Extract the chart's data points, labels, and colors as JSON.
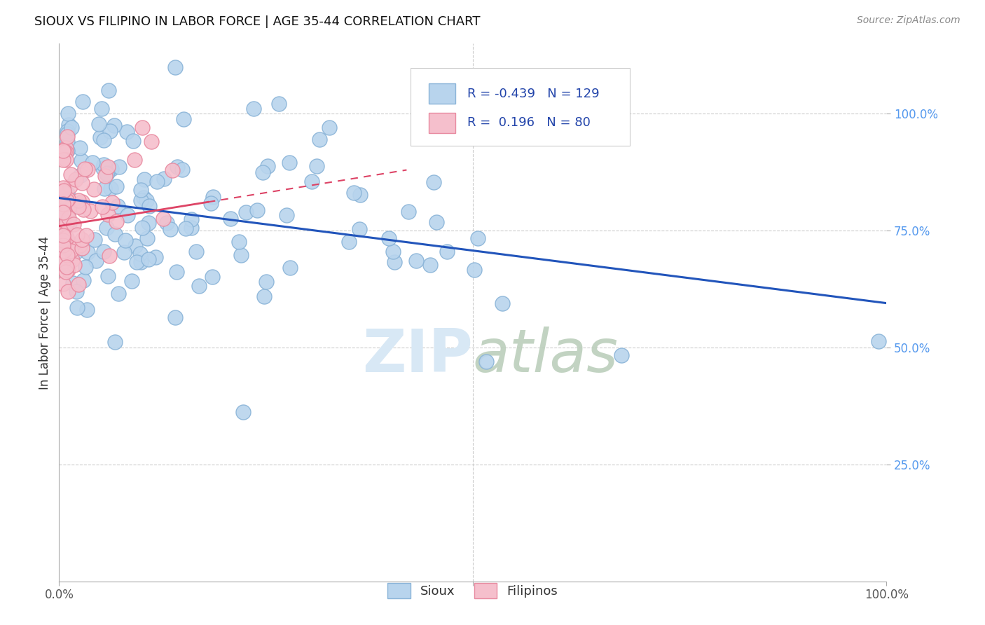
{
  "title": "SIOUX VS FILIPINO IN LABOR FORCE | AGE 35-44 CORRELATION CHART",
  "source": "Source: ZipAtlas.com",
  "ylabel": "In Labor Force | Age 35-44",
  "xmin": 0.0,
  "xmax": 1.0,
  "ymin": 0.0,
  "ymax": 1.15,
  "sioux_R": -0.439,
  "sioux_N": 129,
  "filipino_R": 0.196,
  "filipino_N": 80,
  "sioux_color": "#b8d4ed",
  "sioux_edge": "#8ab4d8",
  "filipino_color": "#f5bfcc",
  "filipino_edge": "#e88aa0",
  "trend_sioux_color": "#2255bb",
  "trend_filipino_color": "#dd4466",
  "watermark_color": "#d8e8f5",
  "background_color": "#ffffff",
  "title_fontsize": 13,
  "source_fontsize": 10,
  "ylabel_fontsize": 12,
  "tick_fontsize": 12,
  "legend_fontsize": 13,
  "sioux_trend_x": [
    0.0,
    1.0
  ],
  "sioux_trend_y": [
    0.82,
    0.595
  ],
  "filipino_trend_x": [
    0.0,
    0.42
  ],
  "filipino_trend_y": [
    0.76,
    0.88
  ]
}
